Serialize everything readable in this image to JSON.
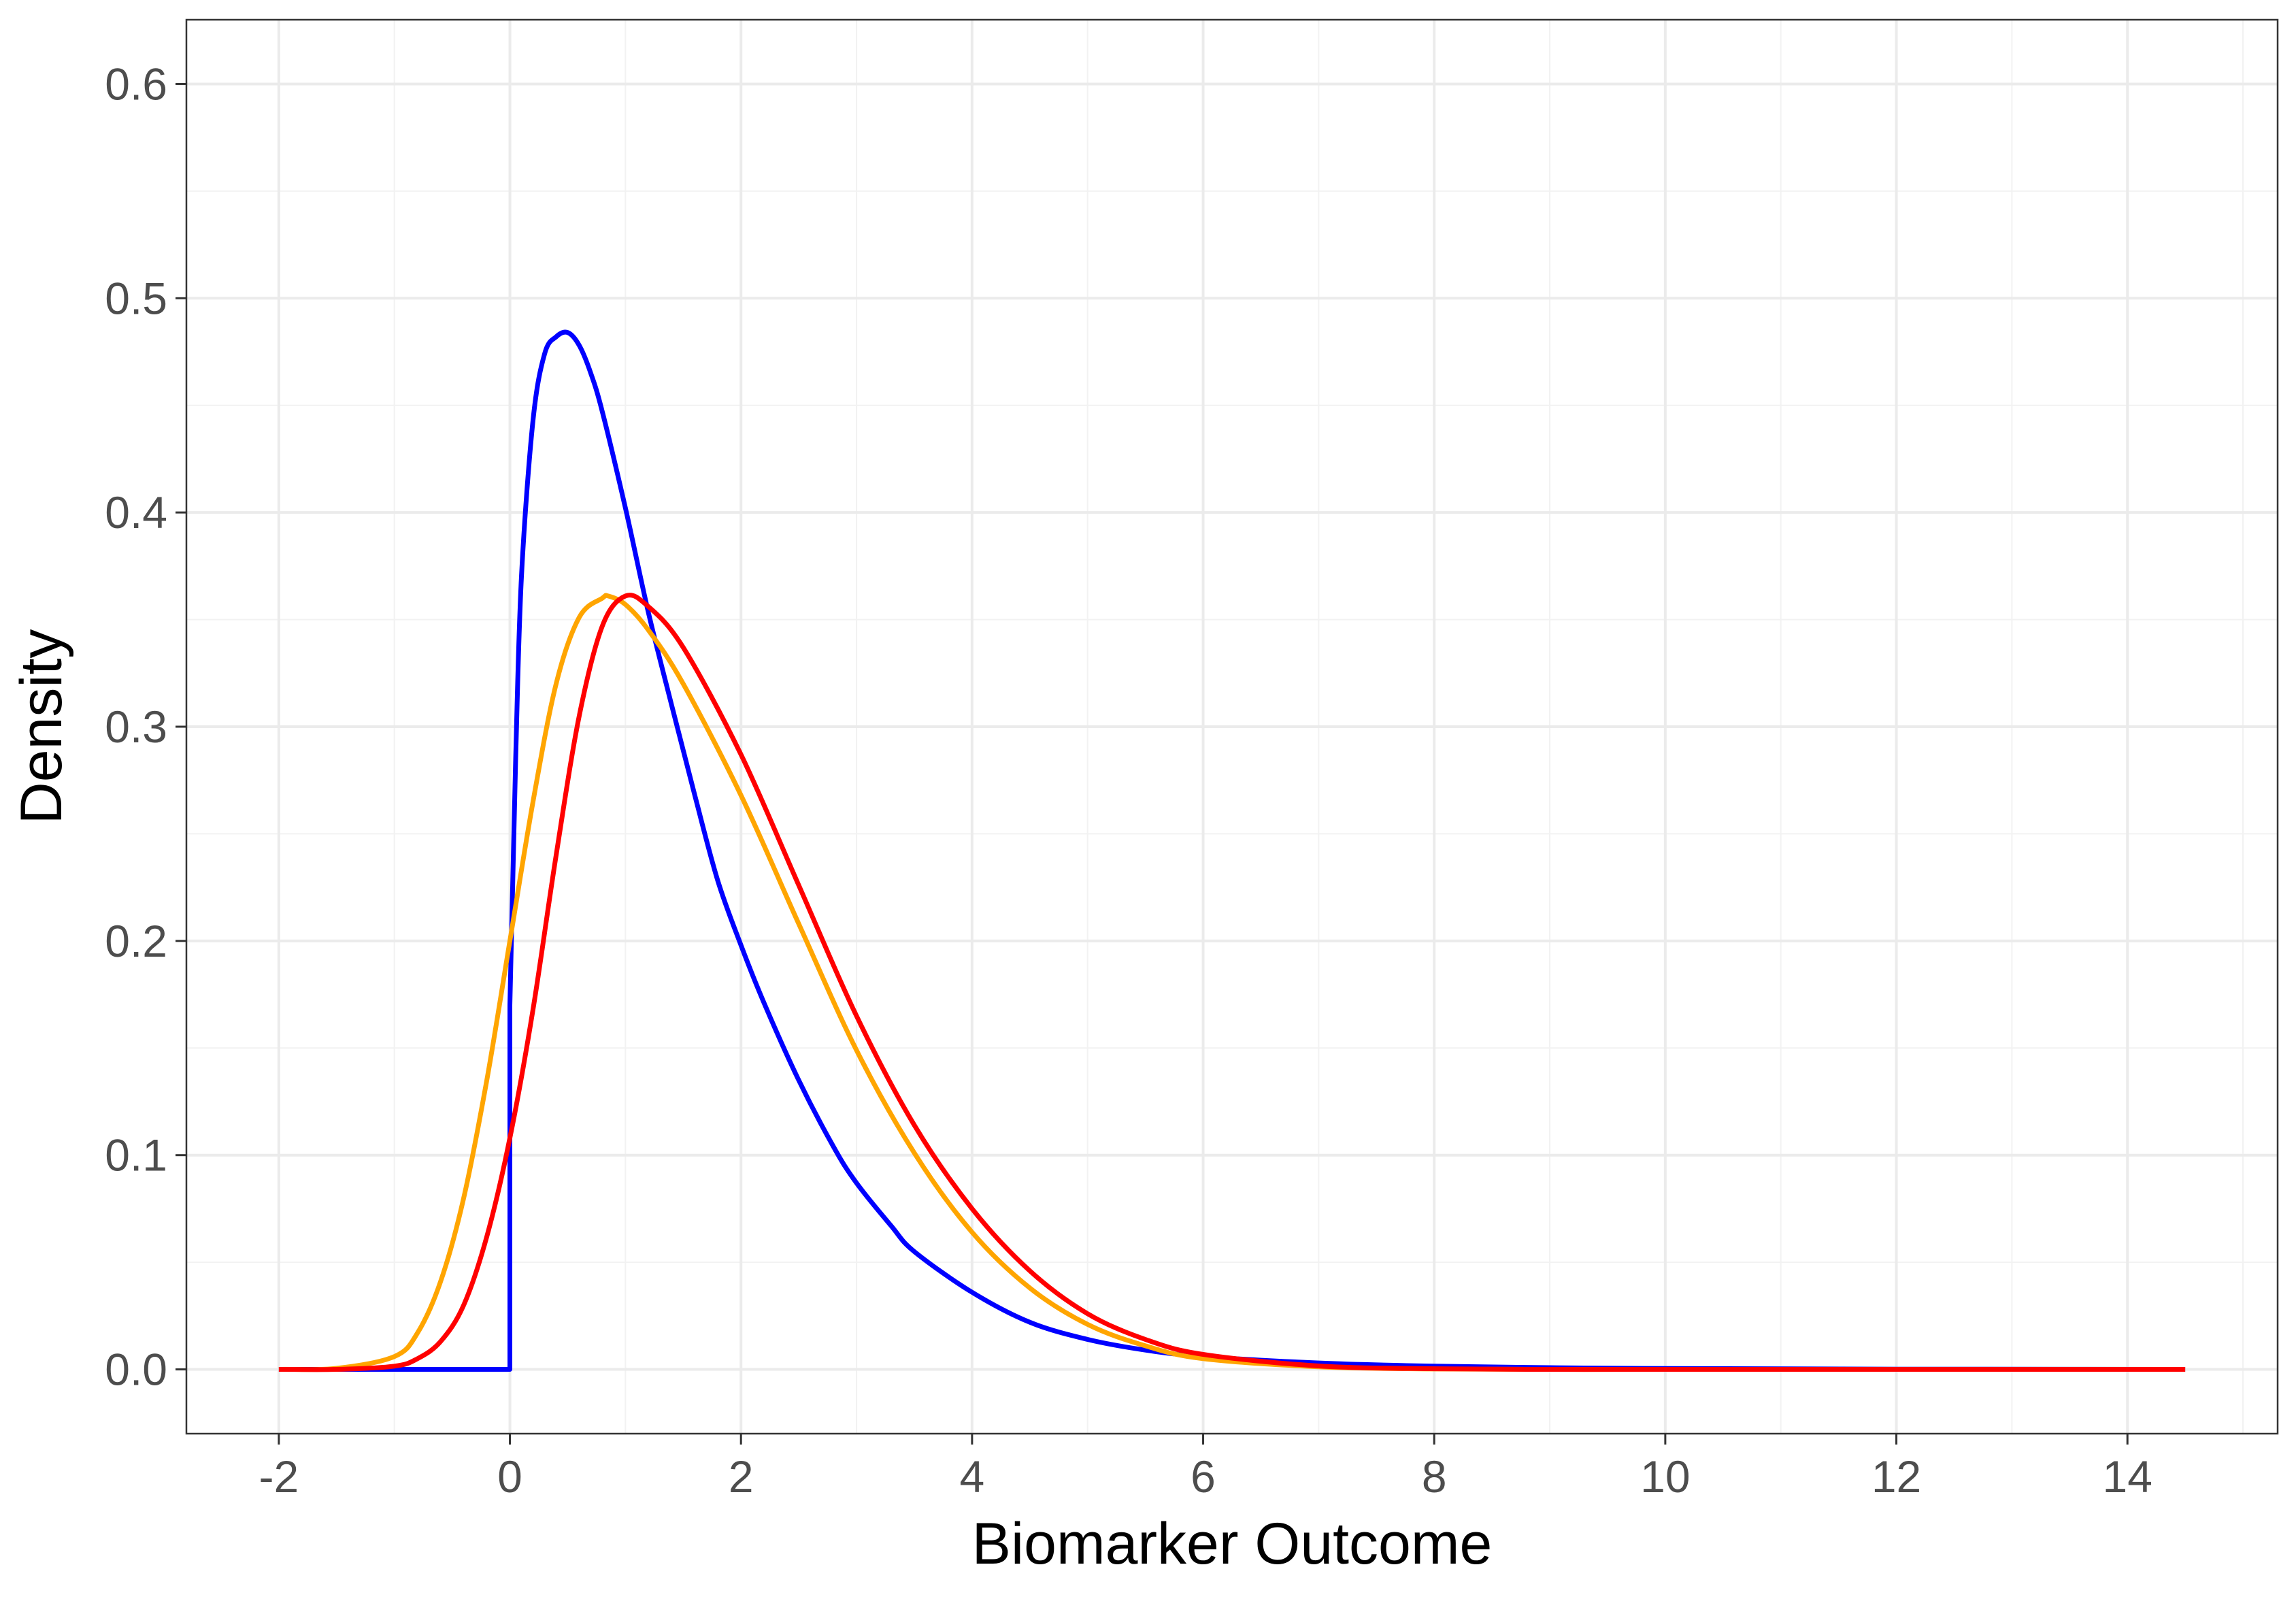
{
  "chart_data": {
    "type": "line",
    "title": "",
    "xlabel": "Biomarker Outcome",
    "ylabel": "Density",
    "xlim": [
      -2.8,
      15.3
    ],
    "ylim": [
      -0.03,
      0.63
    ],
    "x_ticks": [
      -2,
      0,
      2,
      4,
      6,
      8,
      10,
      12,
      14
    ],
    "x_tick_labels": [
      "-2",
      "0",
      "2",
      "4",
      "6",
      "8",
      "10",
      "12",
      "14"
    ],
    "y_ticks": [
      0.0,
      0.1,
      0.2,
      0.3,
      0.4,
      0.5,
      0.6
    ],
    "y_tick_labels": [
      "0.0",
      "0.1",
      "0.2",
      "0.3",
      "0.4",
      "0.5",
      "0.6"
    ],
    "x_minor_ticks": [
      -1,
      1,
      3,
      5,
      7,
      9,
      11,
      13,
      15
    ],
    "y_minor_ticks": [
      0.05,
      0.15,
      0.25,
      0.35,
      0.45,
      0.55
    ],
    "grid": true,
    "legend": "none",
    "series": [
      {
        "color": "#0000FF",
        "x": [
          -2,
          -1,
          0,
          0,
          0.05,
          0.1,
          0.2,
          0.3,
          0.4,
          0.5,
          0.6,
          0.7,
          0.8,
          1.0,
          1.2,
          1.4,
          1.6,
          1.8,
          2.0,
          2.2,
          2.5,
          2.8,
          3.0,
          3.3,
          3.5,
          4.0,
          4.5,
          5.0,
          5.5,
          6.0,
          7.0,
          8.0,
          9.0,
          10.0,
          12.0,
          14.5
        ],
        "y": [
          0,
          0,
          0,
          0.17,
          0.285,
          0.37,
          0.443,
          0.474,
          0.482,
          0.484,
          0.478,
          0.465,
          0.447,
          0.402,
          0.353,
          0.31,
          0.268,
          0.228,
          0.198,
          0.171,
          0.135,
          0.104,
          0.087,
          0.067,
          0.055,
          0.036,
          0.022,
          0.014,
          0.009,
          0.006,
          0.003,
          0.0015,
          0.0008,
          0.0004,
          0.0001,
          0
        ]
      },
      {
        "color": "#FFA500",
        "x": [
          -2,
          -1.5,
          -1.0,
          -0.8,
          -0.6,
          -0.4,
          -0.2,
          0.0,
          0.2,
          0.4,
          0.6,
          0.8,
          0.85,
          1.0,
          1.2,
          1.5,
          2.0,
          2.5,
          3.0,
          3.5,
          4.0,
          4.5,
          5.0,
          5.5,
          6.0,
          7.0,
          8.0,
          9.0,
          10.0,
          12.0,
          14.5
        ],
        "y": [
          0,
          0.0005,
          0.006,
          0.017,
          0.041,
          0.08,
          0.135,
          0.2,
          0.265,
          0.32,
          0.351,
          0.36,
          0.361,
          0.357,
          0.345,
          0.32,
          0.268,
          0.208,
          0.149,
          0.101,
          0.064,
          0.038,
          0.021,
          0.011,
          0.005,
          0.0012,
          0.0002,
          0,
          0,
          0,
          0
        ]
      },
      {
        "color": "#FF0000",
        "x": [
          -2,
          -1.5,
          -1.0,
          -0.8,
          -0.6,
          -0.4,
          -0.2,
          0.0,
          0.2,
          0.4,
          0.6,
          0.8,
          1.0,
          1.2,
          1.5,
          2.0,
          2.5,
          3.0,
          3.5,
          4.0,
          4.5,
          5.0,
          5.5,
          6.0,
          7.0,
          8.0,
          9.0,
          10.0,
          12.0,
          14.5
        ],
        "y": [
          0,
          0,
          0.0015,
          0.005,
          0.013,
          0.03,
          0.062,
          0.108,
          0.168,
          0.24,
          0.305,
          0.347,
          0.361,
          0.356,
          0.337,
          0.287,
          0.226,
          0.165,
          0.114,
          0.075,
          0.046,
          0.026,
          0.014,
          0.007,
          0.0016,
          0.0003,
          0,
          0,
          0,
          0
        ]
      }
    ]
  }
}
